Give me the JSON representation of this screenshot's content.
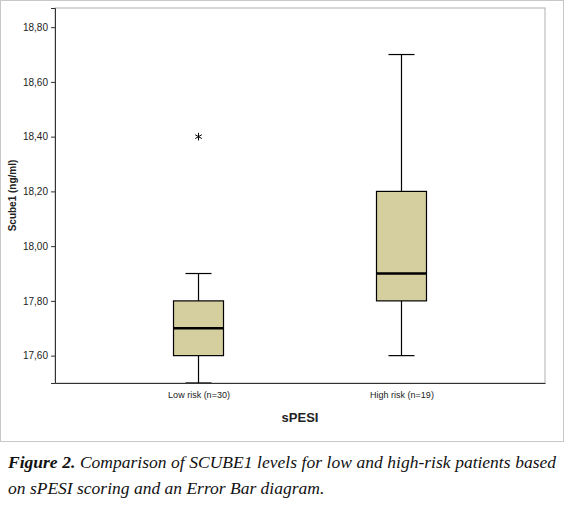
{
  "chart_data": {
    "type": "box",
    "x_label": "sPESI",
    "y_label": "Scube1 (ng/ml)",
    "categories": [
      "Low risk (n=30)",
      "High risk (n=19)"
    ],
    "boxes": [
      {
        "whislo": 17.5,
        "q1": 17.6,
        "med": 17.7,
        "q3": 17.8,
        "whishi": 17.9,
        "fliers": [
          18.4
        ]
      },
      {
        "whislo": 17.6,
        "q1": 17.8,
        "med": 17.9,
        "q3": 18.2,
        "whishi": 18.7,
        "fliers": []
      }
    ],
    "color": "#d5ce9e",
    "marker": "asterisk",
    "ylim": [
      17.5,
      18.87
    ],
    "yticks": [
      {
        "value": 17.6,
        "label": "17,60"
      },
      {
        "value": 17.8,
        "label": "17,80"
      },
      {
        "value": 18.0,
        "label": "18,00"
      },
      {
        "value": 18.2,
        "label": "18,20"
      },
      {
        "value": 18.4,
        "label": "18,40"
      },
      {
        "value": 18.6,
        "label": "18,60"
      },
      {
        "value": 18.8,
        "label": "18,80"
      }
    ],
    "grid": false,
    "caption_label": "Figure 2.",
    "caption": "Comparison of SCUBE1 levels for low and high-risk patients based on sPESI scoring and an Error Bar diagram."
  }
}
